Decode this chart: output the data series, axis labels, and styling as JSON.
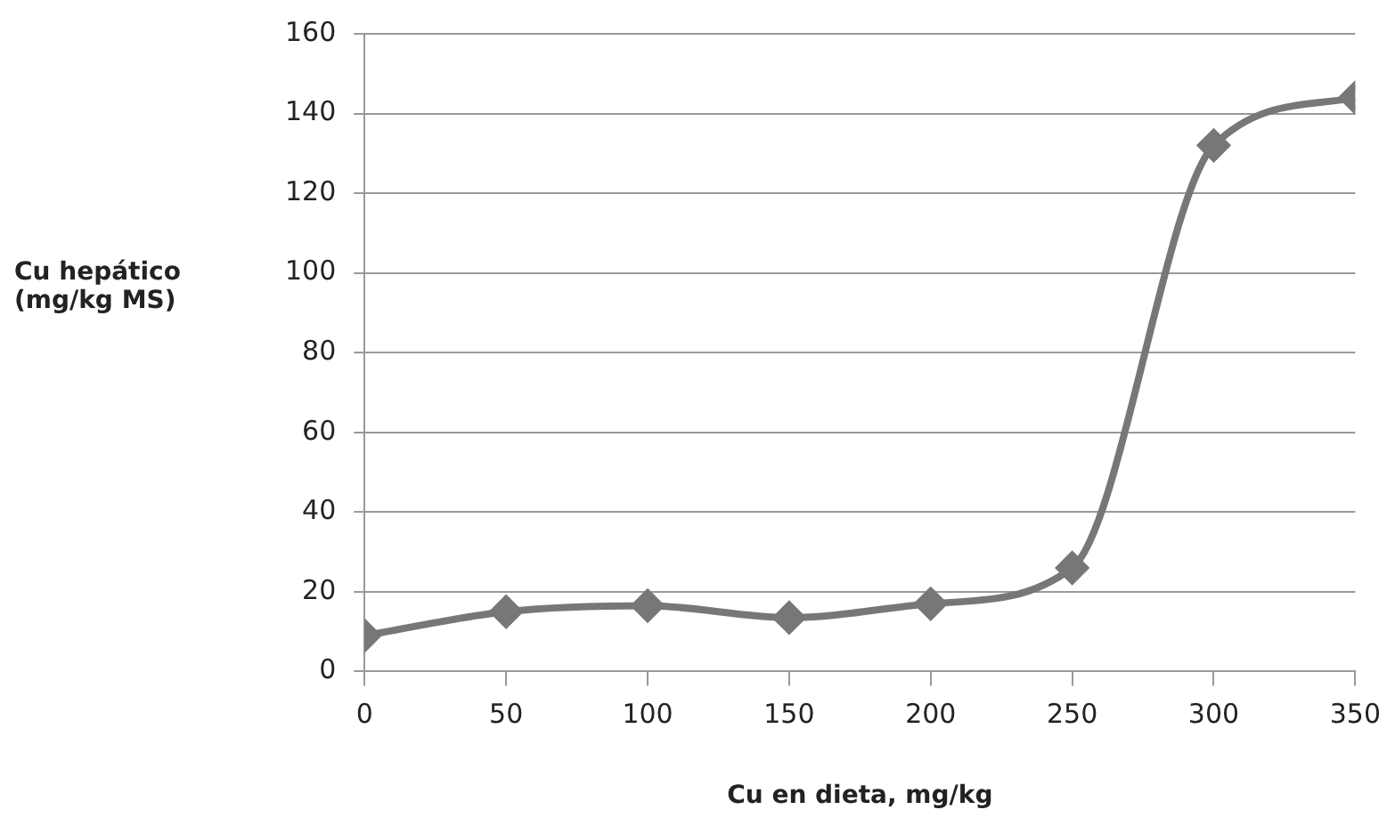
{
  "chart_data": {
    "type": "line",
    "xlabel": "Cu en dieta, mg/kg",
    "ylabel": "Cu hepático\n(mg/kg MS)",
    "x": [
      0,
      50,
      100,
      150,
      200,
      250,
      300,
      350
    ],
    "series": [
      {
        "color": "#777777",
        "values": [
          9,
          15,
          16.5,
          13.5,
          17,
          26,
          132,
          144
        ]
      }
    ],
    "xlim": [
      0,
      350
    ],
    "xticks": [
      0,
      50,
      100,
      150,
      200,
      250,
      300,
      350
    ],
    "ylim": [
      0,
      160
    ],
    "yticks": [
      0,
      20,
      40,
      60,
      80,
      100,
      120,
      140,
      160
    ],
    "grid": "y",
    "legend": false,
    "marker": "diamond",
    "line_style": "solid"
  }
}
